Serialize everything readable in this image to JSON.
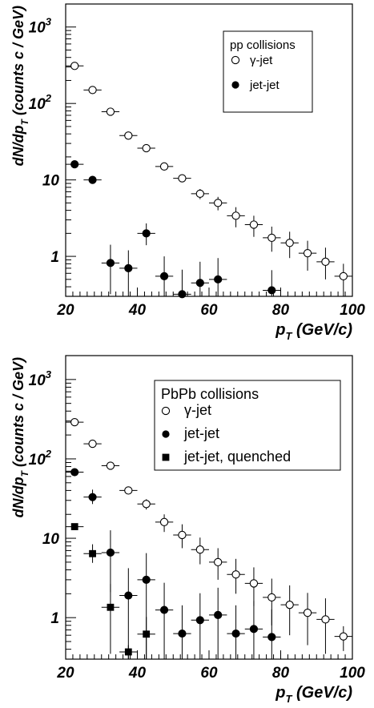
{
  "chart_data": [
    {
      "type": "scatter",
      "title": "",
      "xlabel": "p_T (GeV/c)",
      "ylabel": "dN/dp_T (counts c / GeV)",
      "x_label_parts": {
        "main": "p",
        "sub": "T",
        "rest": " (GeV/c)"
      },
      "y_label_parts": {
        "main": "dN/dp",
        "sub": "T",
        "rest": " (counts c / GeV)"
      },
      "xlim": [
        20,
        100
      ],
      "ylim": [
        0.3,
        2000
      ],
      "yscale": "log",
      "grid": false,
      "legend_position": "top-right",
      "legend_title": "pp collisions",
      "x_ticks": [
        "20",
        "40",
        "60",
        "80",
        "100"
      ],
      "y_ticks": [
        {
          "value": 1,
          "base": "1",
          "exp": ""
        },
        {
          "value": 10,
          "base": "10",
          "exp": ""
        },
        {
          "value": 100,
          "base": "10",
          "exp": "2"
        },
        {
          "value": 1000,
          "base": "10",
          "exp": "3"
        }
      ],
      "series": [
        {
          "name": "γ-jet",
          "marker": "open-circle",
          "x": [
            22.5,
            27.5,
            32.5,
            37.5,
            42.5,
            47.5,
            52.5,
            57.5,
            62.5,
            67.5,
            72.5,
            77.5,
            82.5,
            87.5,
            92.5,
            97.5
          ],
          "y": [
            310,
            150,
            78,
            38,
            26,
            15,
            10.5,
            6.6,
            5.0,
            3.4,
            2.6,
            1.75,
            1.5,
            1.1,
            0.85,
            0.55
          ],
          "y_err_low": [
            0,
            0,
            0,
            0,
            0,
            0,
            0,
            1.0,
            1.0,
            1.0,
            0.8,
            0.6,
            0.55,
            0.45,
            0.35,
            0.25
          ],
          "y_err_high": [
            0,
            0,
            0,
            0,
            0,
            0,
            0,
            1.0,
            1.0,
            1.0,
            0.8,
            0.7,
            0.6,
            0.5,
            0.45,
            0.25
          ]
        },
        {
          "name": "jet-jet",
          "marker": "filled-circle",
          "x": [
            22.5,
            27.5,
            32.5,
            37.5,
            42.5,
            47.5,
            52.5,
            57.5,
            62.5,
            77.5
          ],
          "y": [
            16,
            10,
            0.82,
            0.7,
            2.0,
            0.55,
            0.32,
            0.45,
            0.5,
            0.36
          ],
          "y_err_low": [
            0,
            0,
            0.5,
            0.45,
            0.6,
            0.35,
            0.25,
            0.3,
            0.35,
            0.26
          ],
          "y_err_high": [
            0,
            0,
            0.6,
            0.5,
            0.7,
            0.45,
            0.35,
            0.4,
            0.45,
            0.3
          ]
        }
      ]
    },
    {
      "type": "scatter",
      "title": "",
      "xlabel": "p_T (GeV/c)",
      "ylabel": "dN/dp_T (counts c / GeV)",
      "x_label_parts": {
        "main": "p",
        "sub": "T",
        "rest": " (GeV/c)"
      },
      "y_label_parts": {
        "main": "dN/dp",
        "sub": "T",
        "rest": " (counts c / GeV)"
      },
      "xlim": [
        20,
        100
      ],
      "ylim": [
        0.3,
        2000
      ],
      "yscale": "log",
      "grid": false,
      "legend_position": "top-right",
      "legend_title": "PbPb collisions",
      "x_ticks": [
        "20",
        "40",
        "60",
        "80",
        "100"
      ],
      "y_ticks": [
        {
          "value": 1,
          "base": "1",
          "exp": ""
        },
        {
          "value": 10,
          "base": "10",
          "exp": ""
        },
        {
          "value": 100,
          "base": "10",
          "exp": "2"
        },
        {
          "value": 1000,
          "base": "10",
          "exp": "3"
        }
      ],
      "series": [
        {
          "name": "γ-jet",
          "marker": "open-circle",
          "x": [
            22.5,
            27.5,
            32.5,
            37.5,
            42.5,
            47.5,
            52.5,
            57.5,
            62.5,
            67.5,
            72.5,
            77.5,
            82.5,
            87.5,
            92.5,
            97.5
          ],
          "y": [
            290,
            155,
            82,
            40,
            27,
            16,
            11,
            7.2,
            5.0,
            3.5,
            2.7,
            1.8,
            1.45,
            1.15,
            0.95,
            0.58
          ],
          "y_err_low": [
            0,
            0,
            0,
            0,
            4,
            4,
            3.5,
            2.5,
            2.0,
            1.5,
            1.3,
            1.0,
            0.85,
            0.7,
            0.6,
            0.2
          ],
          "y_err_high": [
            0,
            0,
            0,
            0,
            4,
            4,
            4,
            3.0,
            2.5,
            2.0,
            1.6,
            1.3,
            1.1,
            0.9,
            0.8,
            0.2
          ]
        },
        {
          "name": "jet-jet",
          "marker": "filled-circle",
          "x": [
            22.5,
            27.5,
            32.5,
            37.5,
            42.5,
            47.5,
            52.5,
            57.5,
            62.5,
            67.5,
            72.5,
            77.5
          ],
          "y": [
            68,
            33,
            6.6,
            1.9,
            3.0,
            1.25,
            0.63,
            0.93,
            1.08,
            0.63,
            0.72,
            0.57
          ],
          "y_err_low": [
            0,
            6,
            4.5,
            1.6,
            2.7,
            0.95,
            0.33,
            0.63,
            0.78,
            0.33,
            0.42,
            0.27
          ],
          "y_err_high": [
            0,
            8,
            6,
            2.3,
            3.5,
            1.5,
            0.8,
            1.1,
            1.3,
            0.8,
            0.9,
            0.7
          ]
        },
        {
          "name": "jet-jet, quenched",
          "marker": "filled-square",
          "x": [
            22.5,
            27.5,
            32.5,
            37.5,
            42.5
          ],
          "y": [
            14,
            6.4,
            1.35,
            0.37,
            0.62
          ],
          "y_err_low": [
            0,
            1.5,
            1.0,
            0.07,
            0.32
          ],
          "y_err_high": [
            0,
            2.0,
            1.3,
            0.08,
            0.4
          ]
        }
      ]
    }
  ]
}
